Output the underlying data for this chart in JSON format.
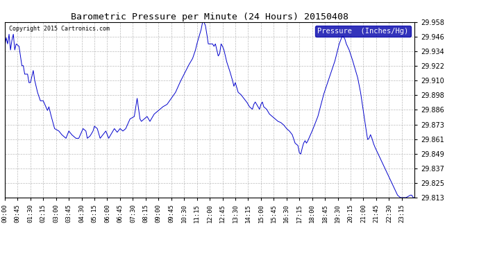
{
  "title": "Barometric Pressure per Minute (24 Hours) 20150408",
  "copyright": "Copyright 2015 Cartronics.com",
  "legend_label": "Pressure  (Inches/Hg)",
  "line_color": "#0000CC",
  "background_color": "#ffffff",
  "grid_color": "#aaaaaa",
  "yticks": [
    29.813,
    29.825,
    29.837,
    29.849,
    29.861,
    29.873,
    29.886,
    29.898,
    29.91,
    29.922,
    29.934,
    29.946,
    29.958
  ],
  "xtick_labels": [
    "00:00",
    "00:45",
    "01:30",
    "02:15",
    "03:00",
    "03:45",
    "04:30",
    "05:15",
    "06:00",
    "06:45",
    "07:30",
    "08:15",
    "09:00",
    "09:45",
    "10:30",
    "11:15",
    "12:00",
    "12:45",
    "13:30",
    "14:15",
    "15:00",
    "15:45",
    "16:30",
    "17:15",
    "18:00",
    "18:45",
    "19:30",
    "20:15",
    "21:00",
    "21:45",
    "22:30",
    "23:15"
  ],
  "ymin": 29.813,
  "ymax": 29.958,
  "legend_facecolor": "#0000AA",
  "legend_textcolor": "#ffffff"
}
